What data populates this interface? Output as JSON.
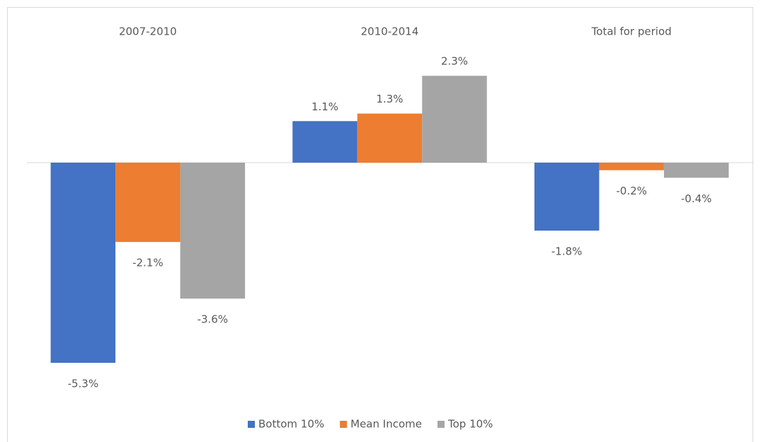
{
  "chart_data": {
    "type": "bar",
    "categories": [
      "2007-2010",
      "2010-2014",
      "Total for period"
    ],
    "series": [
      {
        "name": "Bottom 10%",
        "color": "#4472c4",
        "values": [
          -5.3,
          1.1,
          -1.8
        ],
        "value_labels": [
          "-5.3%",
          "1.1%",
          "-1.8%"
        ]
      },
      {
        "name": "Mean Income",
        "color": "#ed7d31",
        "values": [
          -2.1,
          1.3,
          -0.2
        ],
        "value_labels": [
          "-2.1%",
          "1.3%",
          "-0.2%"
        ]
      },
      {
        "name": "Top 10%",
        "color": "#a5a5a5",
        "values": [
          -3.6,
          2.3,
          -0.4
        ],
        "value_labels": [
          "-3.6%",
          "2.3%",
          "-0.4%"
        ]
      }
    ],
    "legend": "bottom"
  }
}
